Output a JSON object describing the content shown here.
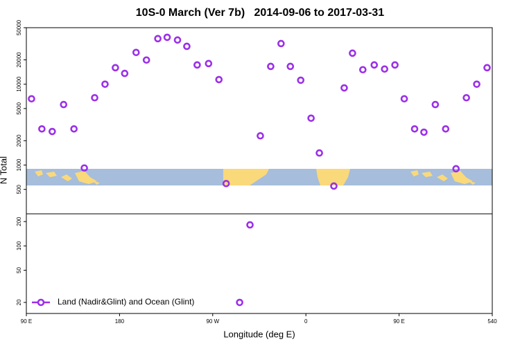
{
  "chart_data": {
    "type": "scatter",
    "title": "10S-0 March (Ver 7b)   2014-09-06 to 2017-03-31",
    "xlabel": "Longitude (deg E)",
    "ylabel": "N Total",
    "log_y": true,
    "legend": "bottom-left",
    "xlim": [
      90,
      540
    ],
    "ylim": [
      14.6,
      50000
    ],
    "xticks": [
      {
        "value": 90,
        "label": "90 E"
      },
      180,
      {
        "value": 270,
        "label": "90 W"
      },
      {
        "value": 360,
        "label": "0"
      },
      {
        "value": 450,
        "label": "90 E"
      },
      540
    ],
    "yticks": [
      20,
      50,
      100,
      200,
      500,
      1000,
      2000,
      5000,
      10000,
      20000,
      50000
    ],
    "series": [
      {
        "name": "Land (Nadir&Glint) and Ocean (Glint)",
        "color": "#9b30e8",
        "x": [
          95,
          105,
          115,
          126,
          136,
          146,
          156,
          166,
          176,
          185,
          196,
          206,
          217,
          226,
          236,
          245,
          255,
          266,
          276,
          283,
          296,
          306,
          316,
          326,
          336,
          345,
          355,
          365,
          373,
          387,
          397,
          405,
          415,
          426,
          436,
          446,
          455,
          465,
          474,
          485,
          495,
          505,
          515,
          525,
          535
        ],
        "values": [
          6600,
          2800,
          2600,
          5600,
          2800,
          920,
          6800,
          10000,
          16000,
          13600,
          24700,
          19900,
          36600,
          38000,
          35200,
          29400,
          17300,
          18000,
          11400,
          590,
          20,
          182,
          2300,
          16600,
          31800,
          16600,
          11200,
          3800,
          1410,
          550,
          9000,
          24200,
          15100,
          17300,
          15400,
          17300,
          6600,
          2800,
          2550,
          5600,
          2800,
          900,
          6800,
          10000,
          16000
        ]
      }
    ]
  }
}
